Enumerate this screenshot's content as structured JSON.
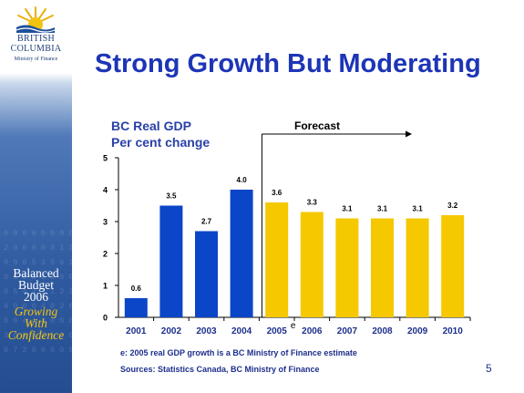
{
  "logo": {
    "line1": "BRITISH",
    "line2": "COLUMBIA",
    "line3": "Ministry of Finance"
  },
  "sidebar": {
    "digits": "0 0 0 0 0 0 0 0\n2 0 0 0 0 3 1 2\n0 0 0 5 3 5 6 2\n0 6 0 3 2 1 9 0\n0 5 4 3 1 1 2 3\n4 0 0 0 4 0 2 6\n0 0 4 4 4 0 0 0\n3 0 4 4 2 0 0 6\n0 7 2 0 0 6 0 9",
    "line1": "Balanced",
    "line2": "Budget",
    "line3": "2006",
    "line4": "Growing",
    "line5": "With",
    "line6": "Confidence"
  },
  "slide": {
    "title": "Strong Growth But Moderating",
    "page_number": "5"
  },
  "chart_data": {
    "type": "bar",
    "title_line1": "BC Real GDP",
    "title_line2": "Per cent change",
    "categories": [
      "2001",
      "2002",
      "2003",
      "2004",
      "2005",
      "2006",
      "2007",
      "2008",
      "2009",
      "2010"
    ],
    "values": [
      0.6,
      3.5,
      2.7,
      4.0,
      3.6,
      3.3,
      3.1,
      3.1,
      3.1,
      3.2
    ],
    "value_labels": [
      "0.6",
      "3.5",
      "2.7",
      "4.0",
      "3.6",
      "3.3",
      "3.1",
      "3.1",
      "3.1",
      "3.2"
    ],
    "bar_colors": [
      "#0b46c8",
      "#0b46c8",
      "#0b46c8",
      "#0b46c8",
      "#f5c800",
      "#f5c800",
      "#f5c800",
      "#f5c800",
      "#f5c800",
      "#f5c800"
    ],
    "ylim": [
      0,
      5
    ],
    "yticks": [
      "0",
      "1",
      "2",
      "3",
      "4",
      "5"
    ],
    "forecast_label": "Forecast",
    "forecast_start_category": "2005",
    "estimate_marker": {
      "category": "2005",
      "text": "e"
    },
    "grid": false,
    "legend": "none"
  },
  "footnotes": {
    "note": "e: 2005 real GDP growth is a BC Ministry of Finance estimate",
    "sources": "Sources:  Statistics Canada, BC Ministry of Finance"
  },
  "colors": {
    "title": "#1d35b6",
    "past_bar": "#0b46c8",
    "forecast_bar": "#f5c800",
    "sidebar": "#2f5a9f",
    "accent_text": "#f2c310"
  }
}
